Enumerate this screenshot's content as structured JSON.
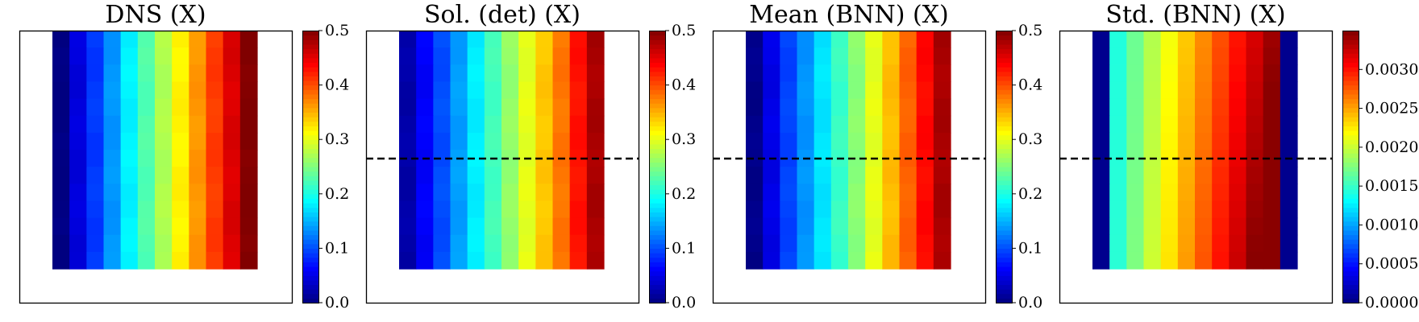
{
  "chart_data": [
    {
      "type": "heatmap",
      "title": "DNS (X)",
      "grid": {
        "rows": 14,
        "cols": 12
      },
      "color_range": [
        0.0,
        0.5
      ],
      "colorbar_ticks": [
        "0.0",
        "0.1",
        "0.2",
        "0.3",
        "0.4",
        "0.5"
      ],
      "colorbar_tick_values": [
        0.0,
        0.1,
        0.2,
        0.3,
        0.4,
        0.5
      ],
      "column_values": [
        0.0,
        0.045,
        0.09,
        0.136,
        0.182,
        0.227,
        0.273,
        0.318,
        0.364,
        0.409,
        0.455,
        0.5
      ],
      "dashed_line": false,
      "colormap": "jet",
      "axes_ticks": "none"
    },
    {
      "type": "heatmap",
      "title": "Sol. (det) (X)",
      "grid": {
        "rows": 14,
        "cols": 12
      },
      "color_range": [
        0.0,
        0.5
      ],
      "colorbar_ticks": [
        "0.0",
        "0.1",
        "0.2",
        "0.3",
        "0.4",
        "0.5"
      ],
      "colorbar_tick_values": [
        0.0,
        0.1,
        0.2,
        0.3,
        0.4,
        0.5
      ],
      "column_values": [
        0.02,
        0.06,
        0.1,
        0.14,
        0.18,
        0.22,
        0.26,
        0.3,
        0.34,
        0.38,
        0.43,
        0.48
      ],
      "dashed_line": true,
      "colormap": "jet",
      "axes_ticks": "none"
    },
    {
      "type": "heatmap",
      "title": "Mean (BNN) (X)",
      "grid": {
        "rows": 14,
        "cols": 12
      },
      "color_range": [
        0.0,
        0.5
      ],
      "colorbar_ticks": [
        "0.0",
        "0.1",
        "0.2",
        "0.3",
        "0.4",
        "0.5"
      ],
      "colorbar_tick_values": [
        0.0,
        0.1,
        0.2,
        0.3,
        0.4,
        0.5
      ],
      "column_values": [
        0.005,
        0.05,
        0.095,
        0.135,
        0.175,
        0.215,
        0.255,
        0.3,
        0.345,
        0.39,
        0.435,
        0.48
      ],
      "dashed_line": true,
      "colormap": "jet",
      "axes_ticks": "none"
    },
    {
      "type": "heatmap",
      "title": "Std. (BNN) (X)",
      "grid": {
        "rows": 14,
        "cols": 12
      },
      "color_range": [
        0.0,
        0.0035
      ],
      "colorbar_ticks": [
        "0.0000",
        "0.0005",
        "0.0010",
        "0.0015",
        "0.0020",
        "0.0025",
        "0.0030"
      ],
      "colorbar_tick_values": [
        0.0,
        0.0005,
        0.001,
        0.0015,
        0.002,
        0.0025,
        0.003
      ],
      "pattern": "std",
      "dashed_line": true,
      "colormap": "jet",
      "axes_ticks": "none"
    }
  ]
}
